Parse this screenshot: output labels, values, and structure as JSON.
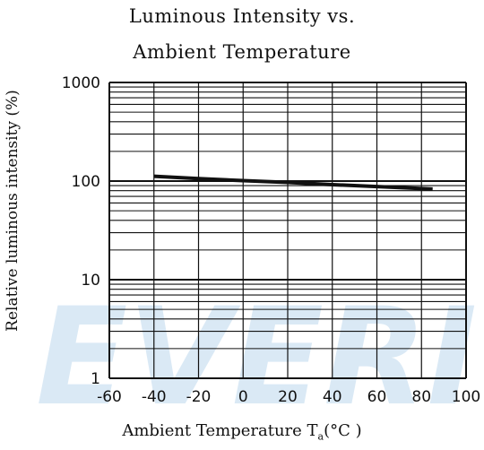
{
  "chart_data": {
    "type": "line",
    "title_lines": [
      "Luminous Intensity vs.",
      "Ambient Temperature"
    ],
    "ylabel": "Relative luminous intensity (%)",
    "xlabel_main": "Ambient Temperature T",
    "xlabel_sub": "a",
    "xlabel_tail": "(°C )",
    "y_scale": "log",
    "ylim": [
      1,
      1000
    ],
    "xlim": [
      -60,
      100
    ],
    "grid": true,
    "x_ticks": [
      "-60",
      "-40",
      "-20",
      "0",
      "20",
      "40",
      "60",
      "80",
      "100"
    ],
    "y_ticks": [
      "1",
      "10",
      "100",
      "1000"
    ],
    "watermark": "EVERI",
    "series": [
      {
        "x": [
          -40,
          -20,
          0,
          20,
          40,
          60,
          85
        ],
        "y": [
          112,
          106,
          101,
          97,
          92,
          88,
          83
        ]
      }
    ],
    "colors": {
      "line": "#111111",
      "grid": "#111111",
      "watermark": "#bcd8ee"
    }
  }
}
